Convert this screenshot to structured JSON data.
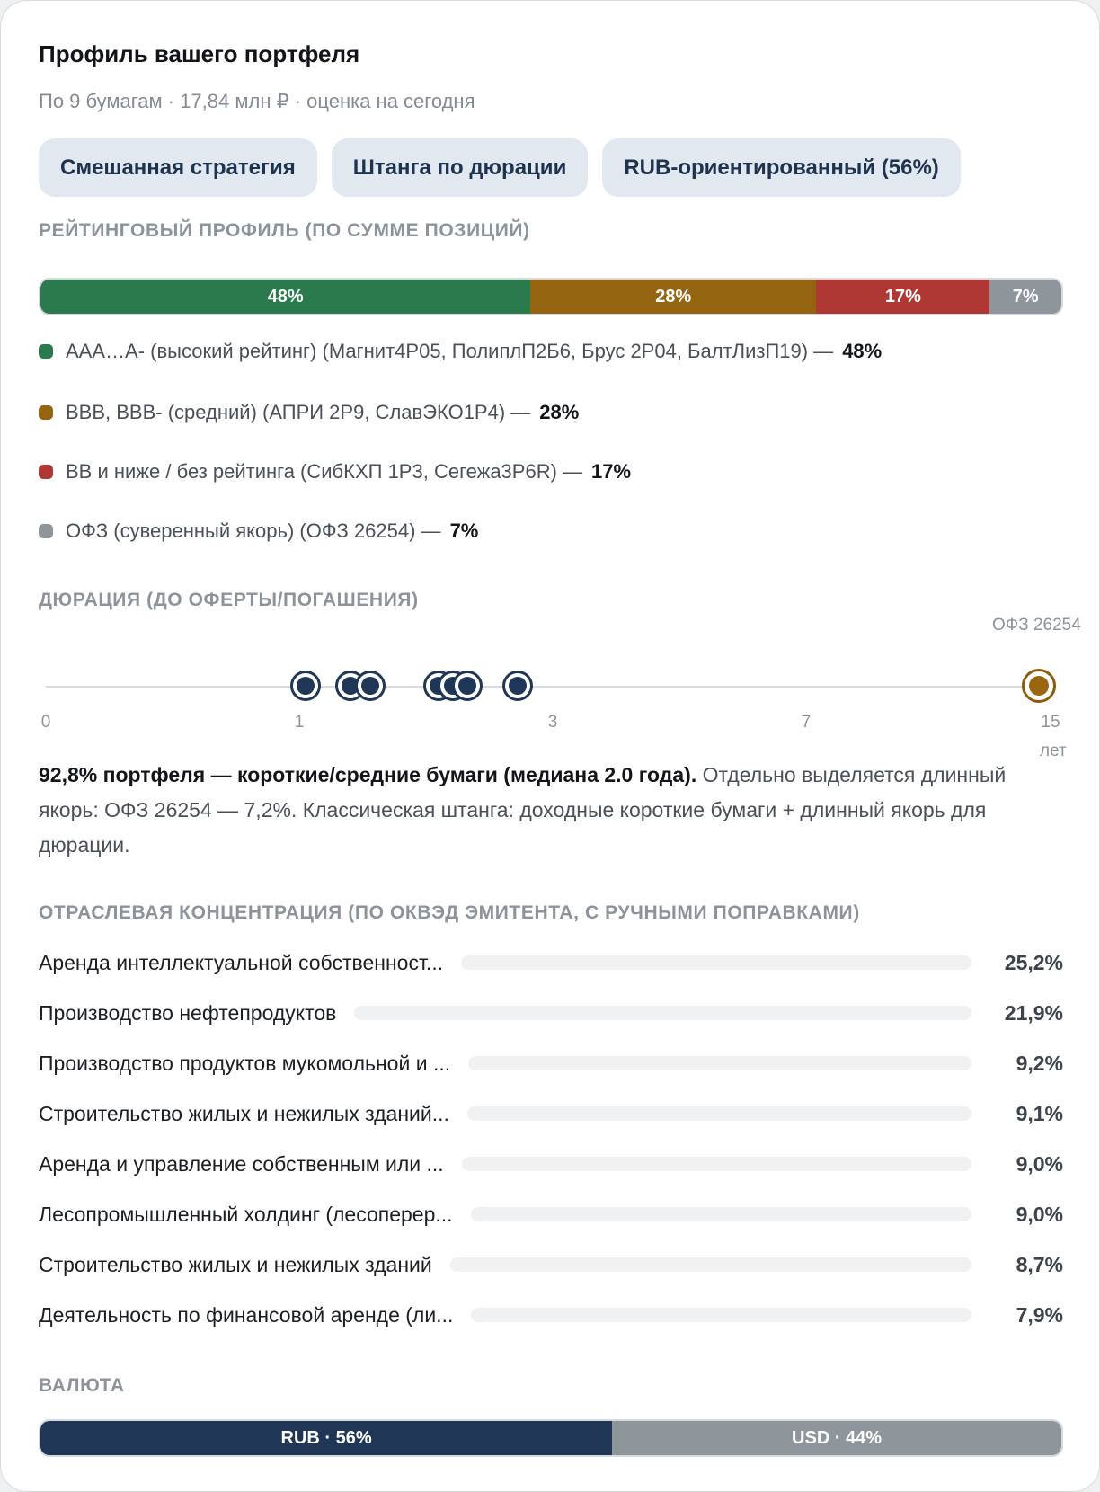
{
  "header": {
    "title": "Профиль вашего портфеля",
    "subtitle": "По 9 бумагам · 17,84 млн ₽ · оценка на сегодня"
  },
  "tags": [
    "Смешанная стратегия",
    "Штанга по дюрации",
    "RUB-ориентированный (56%)"
  ],
  "rating": {
    "label": "РЕЙТИНГОВЫЙ ПРОФИЛЬ (ПО СУММЕ ПОЗИЦИЙ)",
    "segments": [
      {
        "value": 48,
        "text": "48%",
        "color": "#2a7a4e"
      },
      {
        "value": 28,
        "text": "28%",
        "color": "#946410"
      },
      {
        "value": 17,
        "text": "17%",
        "color": "#b03834"
      },
      {
        "value": 7,
        "text": "7%",
        "color": "#8e969c"
      }
    ],
    "legend": [
      {
        "label": "AAA…A- (высокий рейтинг) (Магнит4Р05, ПолиплП2Б6, Брус 2Р04, БалтЛизП19) —",
        "pct": "48%",
        "color": "#2a7a4e"
      },
      {
        "label": "BBB, BBB- (средний) (АПРИ 2Р9, СлавЭКО1Р4) —",
        "pct": "28%",
        "color": "#946410"
      },
      {
        "label": "BB и ниже / без рейтинга (СибКХП 1Р3, Сегежа3Р6R) —",
        "pct": "17%",
        "color": "#b03834"
      },
      {
        "label": "ОФЗ (суверенный якорь) (ОФЗ 26254) —",
        "pct": "7%",
        "color": "#8e969c"
      }
    ]
  },
  "duration": {
    "label": "ДЮРАЦИЯ (ДО ОФЕРТЫ/ПОГАШЕНИЯ)",
    "ticks": [
      "0",
      "1",
      "3",
      "7",
      "15"
    ],
    "unit": "лет",
    "anchor_label": "ОФЗ 26254",
    "summary_bold": "92,8% портфеля — короткие/средние бумаги (медиана 2.0 года).",
    "summary_rest": " Отдельно выделяется длинный якорь: ОФЗ 26254 — 7,2%. Классическая штанга: доходные короткие бумаги + длинный якорь для дюрации."
  },
  "industry": {
    "label": "ОТРАСЛЕВАЯ КОНЦЕНТРАЦИЯ (ПО ОКВЭД ЭМИТЕНТА, С РУЧНЫМИ ПОПРАВКАМИ)",
    "rows": [
      {
        "name": "Аренда интеллектуальной собственност...",
        "value": "25,2%"
      },
      {
        "name": "Производство нефтепродуктов",
        "value": "21,9%"
      },
      {
        "name": "Производство продуктов мукомольной и ...",
        "value": "9,2%"
      },
      {
        "name": "Строительство жилых и нежилых зданий...",
        "value": "9,1%"
      },
      {
        "name": "Аренда и управление собственным или ...",
        "value": "9,0%"
      },
      {
        "name": "Лесопромышленный холдинг (лесоперер...",
        "value": "9,0%"
      },
      {
        "name": "Строительство жилых и нежилых зданий",
        "value": "8,7%"
      },
      {
        "name": "Деятельность по финансовой аренде (ли...",
        "value": "7,9%"
      }
    ]
  },
  "currency": {
    "label": "ВАЛЮТА",
    "segments": [
      {
        "value": 56,
        "text": "RUB · 56%",
        "color": "#1f3656"
      },
      {
        "value": 44,
        "text": "USD · 44%",
        "color": "#8e969c"
      }
    ]
  }
}
